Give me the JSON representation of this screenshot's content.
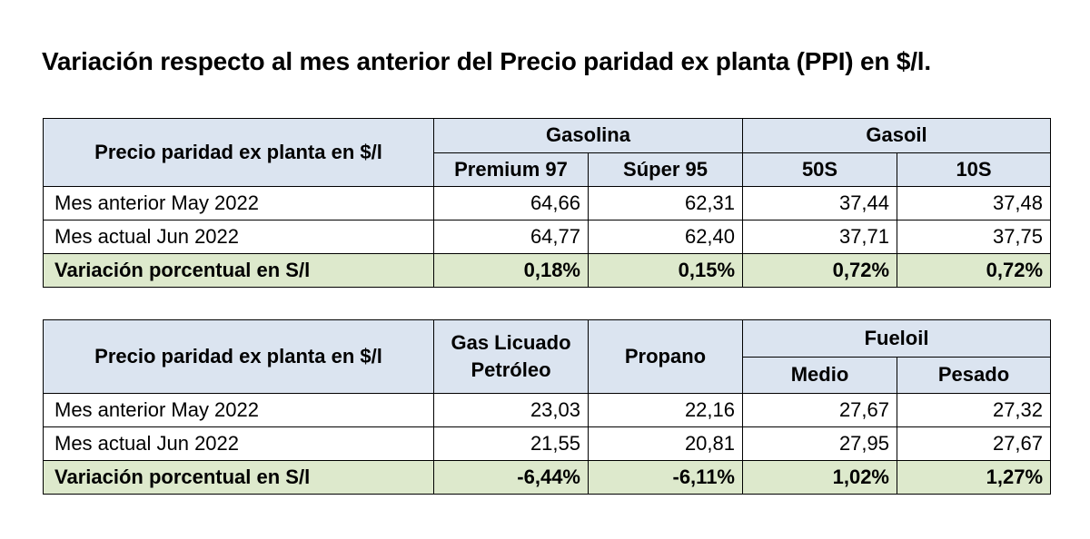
{
  "title": "Variación respecto al mes anterior del Precio paridad ex planta (PPI) en $/l.",
  "table1": {
    "corner": "Precio paridad ex planta en $/l",
    "groups": [
      "Gasolina",
      "Gasoil"
    ],
    "columns": [
      "Premium 97",
      "Súper 95",
      "50S",
      "10S"
    ],
    "rows": [
      {
        "label": "Mes anterior May 2022",
        "values": [
          "64,66",
          "62,31",
          "37,44",
          "37,48"
        ]
      },
      {
        "label": "Mes actual Jun 2022",
        "values": [
          "64,77",
          "62,40",
          "37,71",
          "37,75"
        ]
      },
      {
        "label": "Variación porcentual en S/l",
        "values": [
          "0,18%",
          "0,15%",
          "0,72%",
          "0,72%"
        ]
      }
    ]
  },
  "table2": {
    "corner": "Precio paridad ex planta en $/l",
    "col1": [
      "Gas Licuado",
      "Petróleo"
    ],
    "col2": "Propano",
    "group": "Fueloil",
    "columns": [
      "Medio",
      "Pesado"
    ],
    "rows": [
      {
        "label": "Mes anterior May 2022",
        "values": [
          "23,03",
          "22,16",
          "27,67",
          "27,32"
        ]
      },
      {
        "label": "Mes actual Jun 2022",
        "values": [
          "21,55",
          "20,81",
          "27,95",
          "27,67"
        ]
      },
      {
        "label": "Variación porcentual en S/l",
        "values": [
          "-6,44%",
          "-6,11%",
          "1,02%",
          "1,27%"
        ]
      }
    ]
  },
  "colors": {
    "header_bg": "#dbe4f0",
    "variation_bg": "#dde9cc",
    "border": "#000000"
  }
}
